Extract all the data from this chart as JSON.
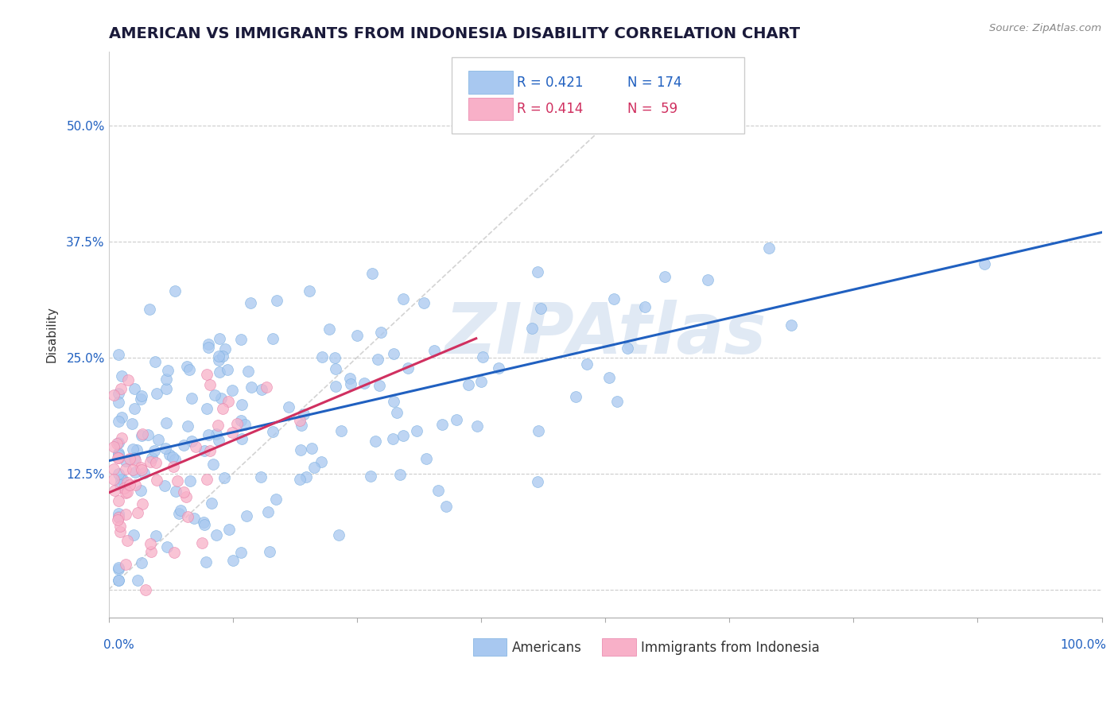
{
  "title": "AMERICAN VS IMMIGRANTS FROM INDONESIA DISABILITY CORRELATION CHART",
  "source": "Source: ZipAtlas.com",
  "ylabel": "Disability",
  "xlim": [
    0.0,
    1.0
  ],
  "ylim": [
    -0.03,
    0.58
  ],
  "yticks": [
    0.0,
    0.125,
    0.25,
    0.375,
    0.5
  ],
  "ytick_labels": [
    "",
    "12.5%",
    "25.0%",
    "37.5%",
    "50.0%"
  ],
  "americans_color": "#a8c8f0",
  "americans_edge_color": "#7aaee0",
  "indonesia_color": "#f8b0c8",
  "indonesia_edge_color": "#e880a8",
  "americans_line_color": "#2060c0",
  "indonesia_line_color": "#d03060",
  "diagonal_color": "#c8c8c8",
  "r_american": 0.421,
  "n_american": 174,
  "r_indonesia": 0.414,
  "n_indonesia": 59,
  "title_fontsize": 14,
  "axis_label_fontsize": 11,
  "tick_fontsize": 11,
  "legend_fontsize": 12,
  "watermark": "ZIPAtlas",
  "background_color": "#ffffff",
  "leg_text_blue": "#2060c0",
  "leg_text_pink": "#d03060"
}
